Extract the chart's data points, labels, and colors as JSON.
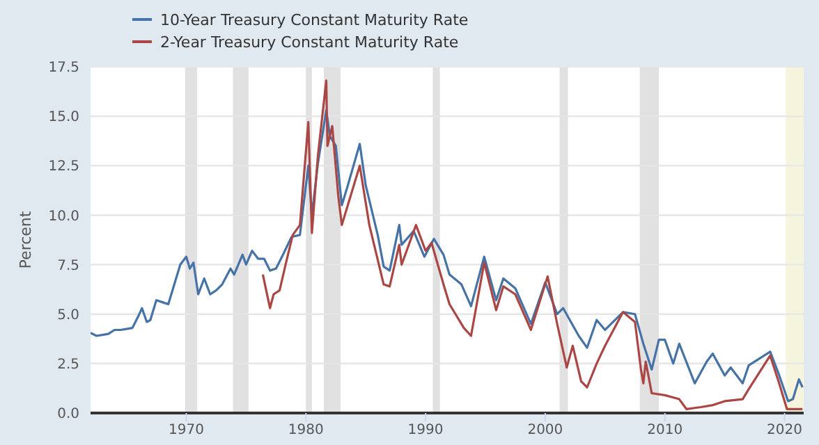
{
  "chart_data": {
    "type": "line",
    "ylabel": "Percent",
    "legend": "top left",
    "grid": "y",
    "xlim": [
      1962,
      2021.6
    ],
    "xticks": [
      1970,
      1980,
      1990,
      2000,
      2010,
      2020
    ],
    "ylim": [
      0,
      17.5
    ],
    "yticks": [
      {
        "value": 0,
        "label": "0.0"
      },
      2.5,
      {
        "value": 5,
        "label": "5.0"
      },
      7.5,
      {
        "value": 10,
        "label": "10.0"
      },
      12.5,
      {
        "value": 15,
        "label": "15.0"
      },
      17.5
    ],
    "bands": [
      {
        "axis": "x",
        "from": 1969.9,
        "to": 1970.9,
        "color": "#e1e1e1"
      },
      {
        "axis": "x",
        "from": 1973.9,
        "to": 1975.2,
        "color": "#e1e1e1"
      },
      {
        "axis": "x",
        "from": 1980.0,
        "to": 1980.5,
        "color": "#e1e1e1"
      },
      {
        "axis": "x",
        "from": 1981.5,
        "to": 1982.9,
        "color": "#e1e1e1"
      },
      {
        "axis": "x",
        "from": 1990.6,
        "to": 1991.2,
        "color": "#e1e1e1"
      },
      {
        "axis": "x",
        "from": 2001.2,
        "to": 2001.9,
        "color": "#e1e1e1"
      },
      {
        "axis": "x",
        "from": 2007.9,
        "to": 2009.5,
        "color": "#e1e1e1"
      },
      {
        "axis": "x",
        "from": 2020.1,
        "to": 2021.6,
        "color": "#f5f4dc"
      }
    ],
    "series": [
      {
        "name": "10-Year Treasury Constant Maturity Rate",
        "color": "#4572a7",
        "x": [
          1962,
          1962.5,
          1963,
          1963.5,
          1964,
          1964.5,
          1965,
          1965.5,
          1966,
          1966.3,
          1966.7,
          1967,
          1967.5,
          1968,
          1968.5,
          1969,
          1969.5,
          1970,
          1970.3,
          1970.6,
          1971,
          1971.5,
          1972,
          1972.5,
          1973,
          1973.7,
          1974,
          1974.7,
          1975,
          1975.5,
          1976,
          1976.5,
          1977,
          1977.5,
          1978,
          1978.8,
          1979.5,
          1980.2,
          1980.5,
          1981,
          1981.7,
          1982,
          1982.5,
          1983,
          1983.5,
          1984.5,
          1985,
          1986,
          1986.5,
          1987,
          1987.8,
          1988,
          1989,
          1989.9,
          1990.7,
          1991.5,
          1992,
          1993,
          1993.8,
          1994.9,
          1995.9,
          1996.5,
          1997.5,
          1998.8,
          2000,
          2001,
          2001.5,
          2002.8,
          2003.5,
          2004.3,
          2005,
          2006.5,
          2007.5,
          2008.2,
          2008.9,
          2009.5,
          2010,
          2010.7,
          2011.2,
          2012.5,
          2013.5,
          2014,
          2015,
          2015.5,
          2016.5,
          2017,
          2018.8,
          2019.5,
          2020.3,
          2020.7,
          2021.2,
          2021.5
        ],
        "values": [
          4.05,
          3.9,
          3.95,
          4.0,
          4.2,
          4.2,
          4.25,
          4.3,
          4.9,
          5.3,
          4.6,
          4.7,
          5.7,
          5.6,
          5.5,
          6.5,
          7.5,
          7.9,
          7.3,
          7.6,
          6.0,
          6.8,
          6.0,
          6.2,
          6.5,
          7.3,
          7.0,
          8.0,
          7.5,
          8.2,
          7.8,
          7.8,
          7.2,
          7.3,
          7.9,
          8.9,
          9.0,
          12.5,
          10.0,
          12.6,
          15.3,
          14.0,
          13.5,
          10.5,
          11.5,
          13.6,
          11.5,
          9.0,
          7.4,
          7.2,
          9.5,
          8.5,
          9.2,
          7.9,
          8.8,
          8.0,
          7.0,
          6.5,
          5.4,
          7.9,
          5.7,
          6.8,
          6.3,
          4.5,
          6.6,
          5.0,
          5.3,
          3.9,
          3.3,
          4.7,
          4.2,
          5.1,
          5.0,
          3.5,
          2.2,
          3.7,
          3.7,
          2.5,
          3.5,
          1.5,
          2.6,
          3.0,
          1.9,
          2.3,
          1.5,
          2.4,
          3.1,
          2.0,
          0.6,
          0.7,
          1.7,
          1.3
        ]
      },
      {
        "name": "2-Year Treasury Constant Maturity Rate",
        "color": "#aa4643",
        "x": [
          1976.4,
          1977.0,
          1977.3,
          1977.8,
          1978.3,
          1978.9,
          1979.5,
          1980.2,
          1980.5,
          1981,
          1981.7,
          1981.8,
          1982.2,
          1982.7,
          1983,
          1983.5,
          1984.5,
          1985.3,
          1986.5,
          1987,
          1987.8,
          1988,
          1989.2,
          1990,
          1990.5,
          1991.5,
          1992,
          1993.2,
          1993.8,
          1994.9,
          1995.9,
          1996.5,
          1997.5,
          1998.8,
          2000.2,
          2001,
          2001.8,
          2002.3,
          2003,
          2003.5,
          2004.3,
          2005,
          2006.5,
          2007.5,
          2008,
          2008.2,
          2008.4,
          2008.9,
          2010,
          2011.2,
          2011.8,
          2013,
          2014,
          2015,
          2016.5,
          2017,
          2018.8,
          2019.5,
          2020.2,
          2021.5
        ],
        "values": [
          7.0,
          5.3,
          6.0,
          6.2,
          7.5,
          9.0,
          9.5,
          14.7,
          9.1,
          13.0,
          16.8,
          13.5,
          14.5,
          11.0,
          9.5,
          10.5,
          12.5,
          9.5,
          6.5,
          6.4,
          8.5,
          7.5,
          9.5,
          8.2,
          8.6,
          6.5,
          5.5,
          4.3,
          3.9,
          7.6,
          5.2,
          6.4,
          6.0,
          4.2,
          6.9,
          4.5,
          2.3,
          3.4,
          1.6,
          1.3,
          2.5,
          3.4,
          5.1,
          4.6,
          2.2,
          1.5,
          2.6,
          1.0,
          0.9,
          0.7,
          0.2,
          0.3,
          0.4,
          0.6,
          0.7,
          1.2,
          2.9,
          1.6,
          0.2,
          0.2
        ]
      }
    ]
  }
}
